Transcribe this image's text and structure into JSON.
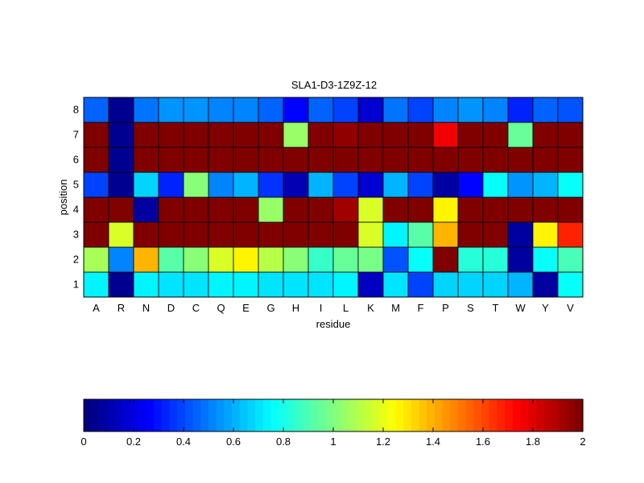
{
  "chart_data": {
    "type": "heatmap",
    "title": "SLA1-D3-1Z9Z-12",
    "xlabel": "residue",
    "ylabel": "position",
    "x_categories": [
      "A",
      "R",
      "N",
      "D",
      "C",
      "Q",
      "E",
      "G",
      "H",
      "I",
      "L",
      "K",
      "M",
      "F",
      "P",
      "S",
      "T",
      "W",
      "Y",
      "V"
    ],
    "y_categories": [
      "1",
      "2",
      "3",
      "4",
      "5",
      "6",
      "7",
      "8"
    ],
    "colormap": "jet",
    "clim": [
      0,
      2
    ],
    "colorbar": {
      "location": "bottom",
      "ticks": [
        0,
        0.2,
        0.4,
        0.6,
        0.8,
        1,
        1.2,
        1.4,
        1.6,
        1.8,
        2
      ],
      "tick_labels": [
        "0",
        "0.2",
        "0.4",
        "0.6",
        "0.8",
        "1",
        "1.2",
        "1.4",
        "1.6",
        "1.8",
        "2"
      ]
    },
    "values": [
      [
        0.72,
        0.05,
        0.72,
        0.7,
        0.7,
        0.72,
        0.72,
        0.7,
        0.7,
        0.7,
        0.72,
        0.15,
        0.7,
        0.38,
        0.68,
        0.68,
        0.68,
        0.62,
        0.08,
        0.76
      ],
      [
        1.08,
        0.52,
        1.4,
        0.92,
        1.02,
        1.18,
        1.28,
        1.12,
        1.02,
        0.86,
        0.96,
        0.98,
        0.42,
        0.76,
        2.0,
        0.84,
        0.82,
        0.08,
        0.78,
        0.88
      ],
      [
        2.0,
        1.18,
        2.0,
        2.0,
        2.0,
        2.0,
        2.0,
        2.0,
        2.0,
        2.0,
        2.0,
        1.18,
        0.72,
        0.92,
        1.4,
        2.0,
        2.0,
        0.08,
        1.28,
        1.68
      ],
      [
        2.0,
        2.0,
        0.08,
        2.0,
        2.0,
        2.0,
        2.0,
        1.05,
        2.0,
        2.0,
        1.92,
        1.18,
        2.0,
        2.0,
        1.28,
        2.0,
        2.0,
        2.0,
        2.0,
        2.0
      ],
      [
        0.38,
        0.05,
        0.68,
        0.32,
        1.0,
        0.5,
        0.62,
        0.35,
        0.12,
        0.62,
        0.38,
        0.18,
        0.62,
        0.4,
        0.08,
        0.25,
        0.76,
        0.56,
        0.62,
        0.78
      ],
      [
        2.0,
        0.05,
        2.0,
        2.0,
        2.0,
        2.0,
        2.0,
        2.0,
        2.0,
        2.0,
        2.0,
        2.0,
        2.0,
        2.0,
        2.0,
        2.0,
        2.0,
        2.0,
        2.0,
        2.0
      ],
      [
        2.0,
        0.05,
        2.0,
        2.0,
        2.0,
        2.0,
        2.0,
        2.0,
        1.05,
        2.0,
        1.95,
        2.0,
        2.0,
        2.0,
        1.78,
        2.0,
        2.0,
        0.96,
        2.0,
        2.0
      ],
      [
        0.45,
        0.05,
        0.48,
        0.56,
        0.54,
        0.52,
        0.52,
        0.45,
        0.28,
        0.46,
        0.38,
        0.18,
        0.48,
        0.38,
        0.5,
        0.56,
        0.52,
        0.32,
        0.44,
        0.42
      ]
    ]
  }
}
